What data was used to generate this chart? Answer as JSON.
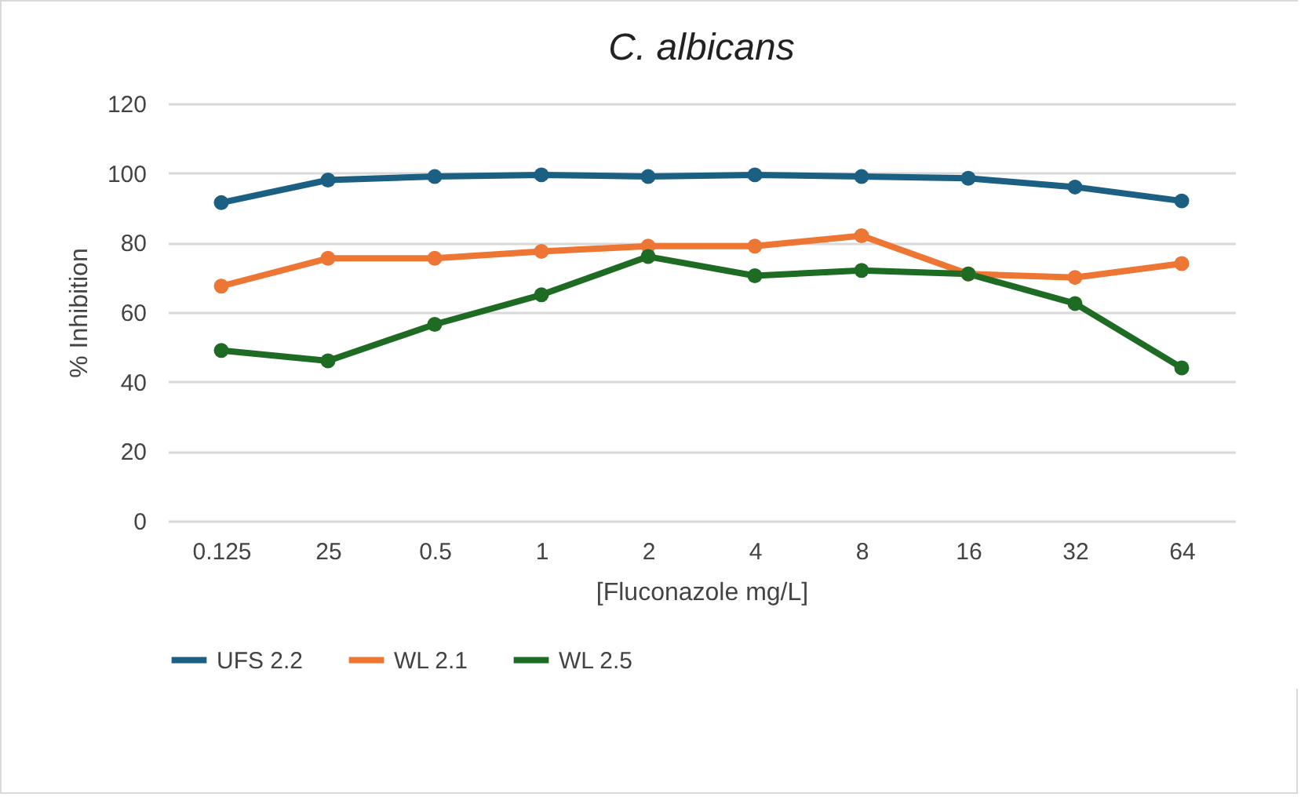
{
  "chart_data": {
    "type": "line",
    "title": "C. albicans",
    "xlabel": "[Fluconazole mg/L]",
    "ylabel": "% Inhibition",
    "categories": [
      "0.125",
      "25",
      "0.5",
      "1",
      "2",
      "4",
      "8",
      "16",
      "32",
      "64"
    ],
    "ylim": [
      0,
      120
    ],
    "yticks": [
      0,
      20,
      40,
      60,
      80,
      100,
      120
    ],
    "grid": "y",
    "legend": "bottom",
    "marker": "circle",
    "line_style": "solid",
    "series": [
      {
        "name": "UFS 2.2",
        "color": "#1b5f82",
        "values": [
          91.5,
          98,
          99,
          99.5,
          99,
          99.5,
          99,
          98.5,
          96,
          92
        ]
      },
      {
        "name": "WL 2.1",
        "color": "#ed7634",
        "values": [
          67.5,
          75.5,
          75.5,
          77.5,
          79,
          79,
          82,
          71,
          70,
          74
        ]
      },
      {
        "name": "WL 2.5",
        "color": "#1e6b24",
        "values": [
          49,
          46,
          56.5,
          65,
          76,
          70.5,
          72,
          71,
          62.5,
          44
        ]
      }
    ]
  }
}
